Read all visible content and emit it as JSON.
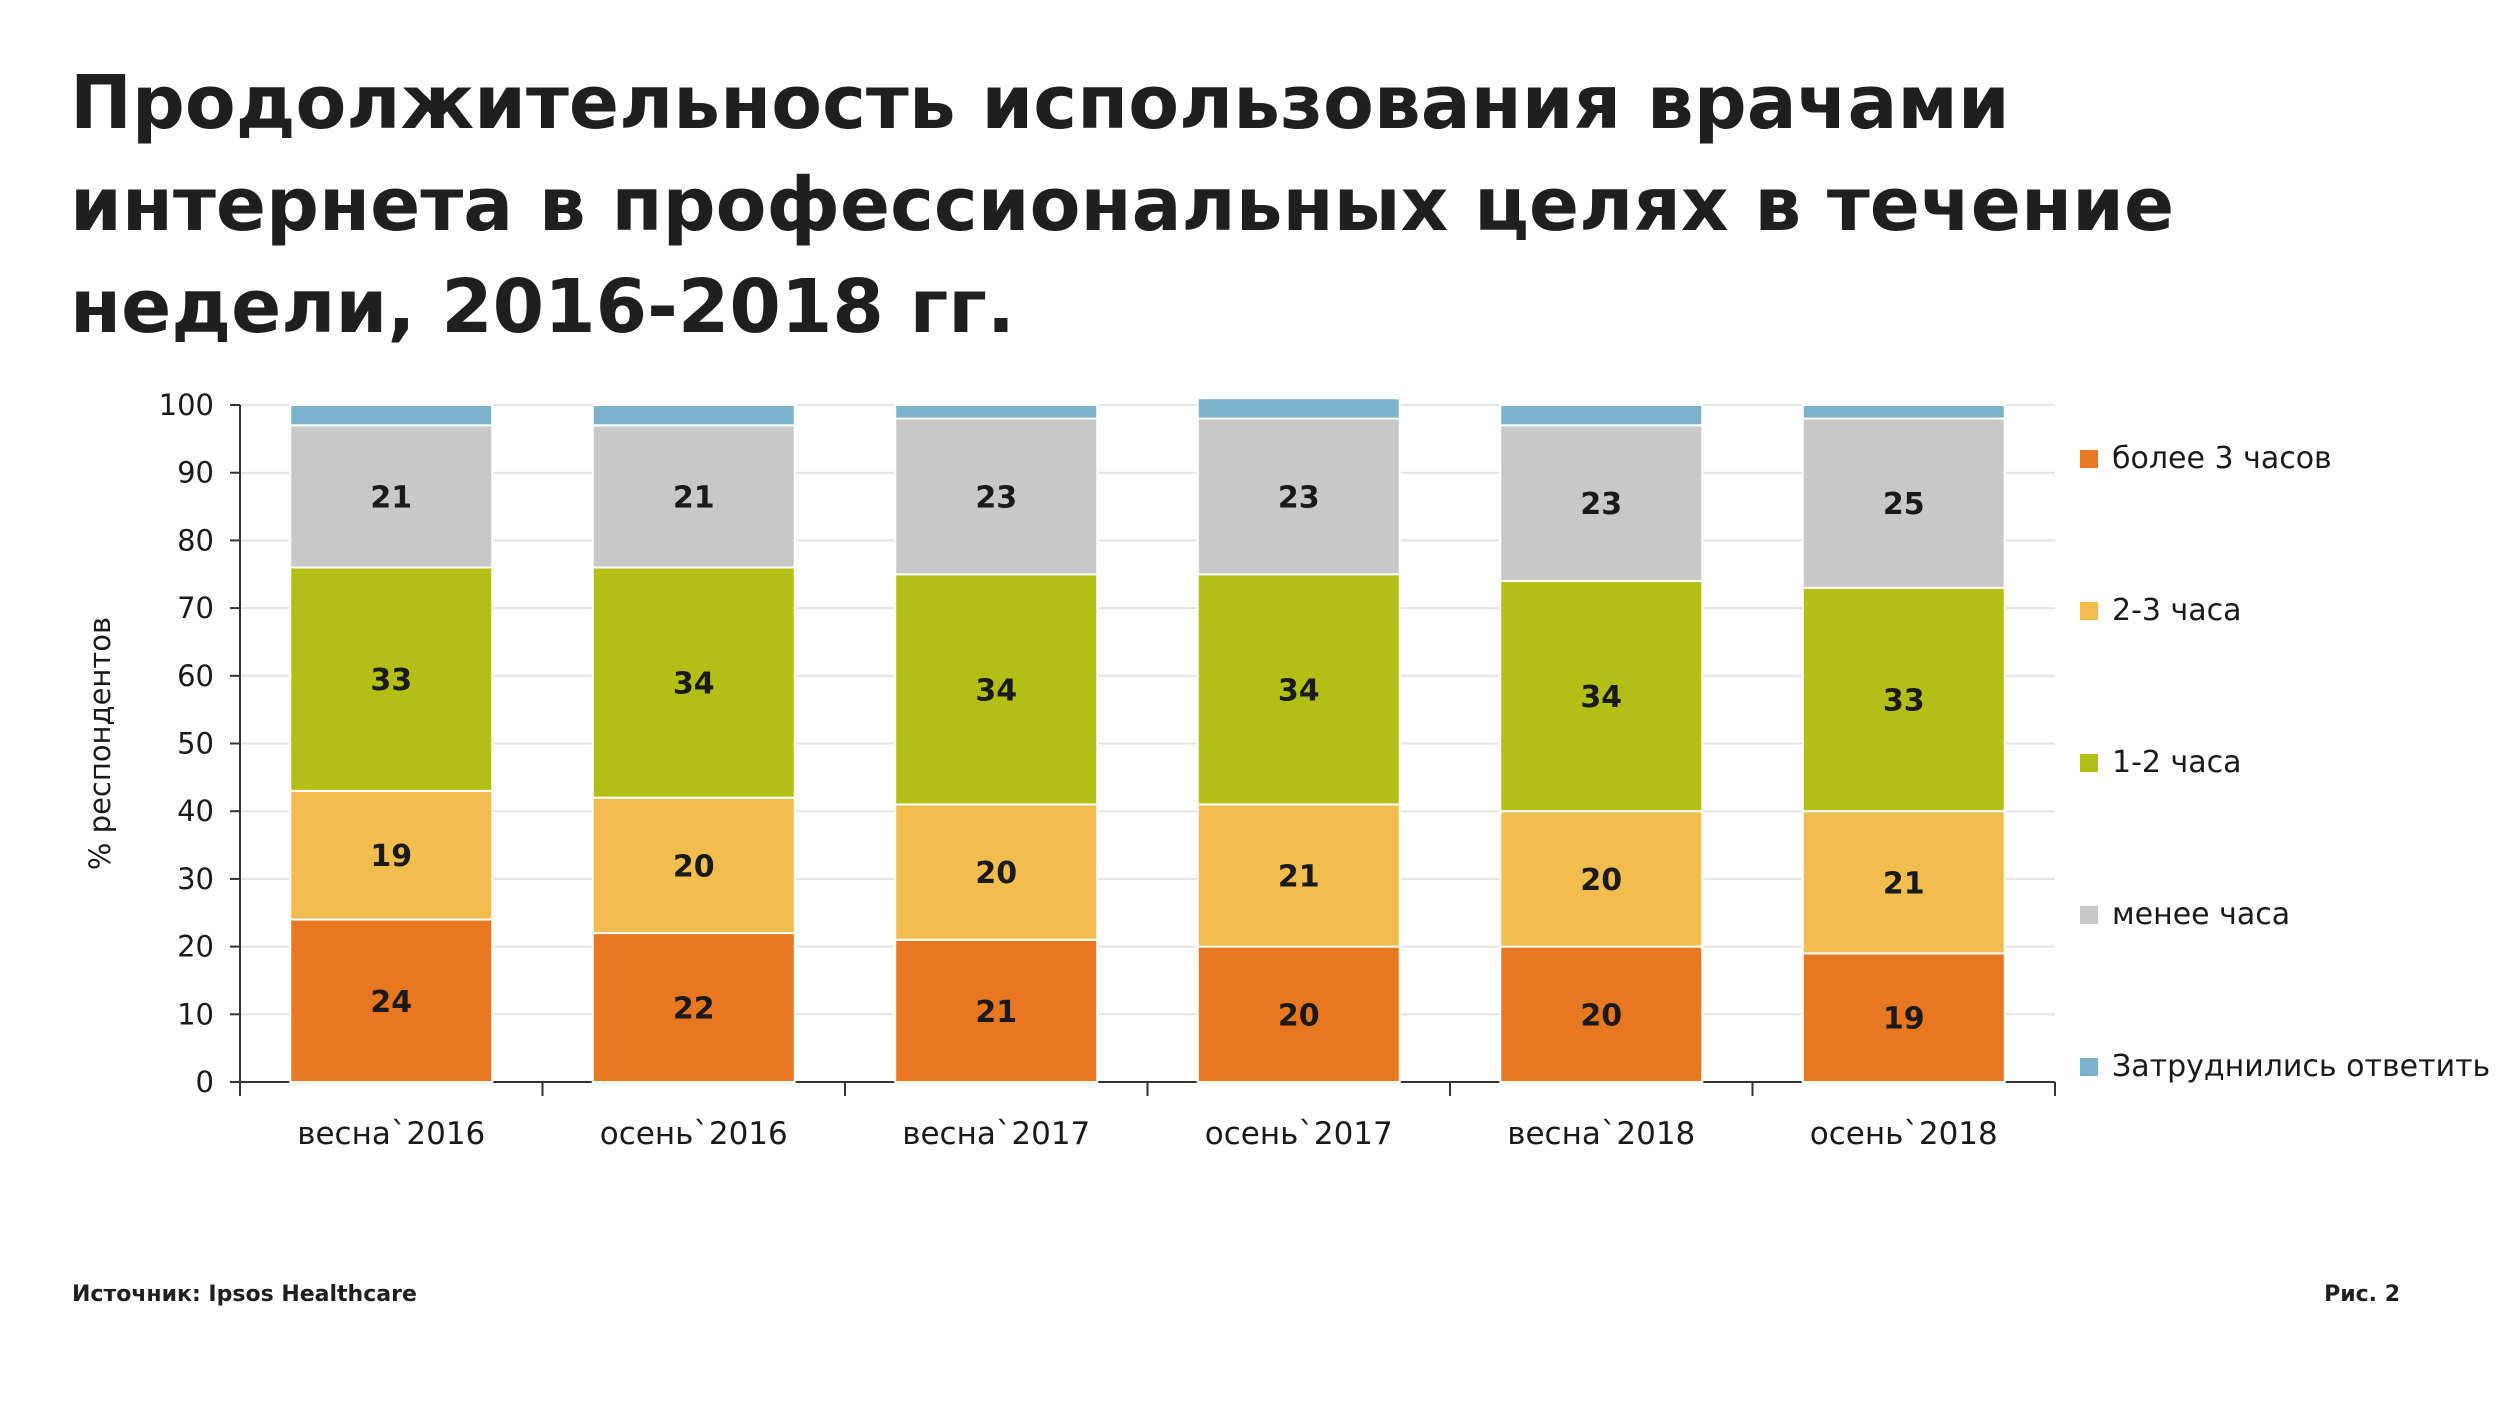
{
  "title": "Продолжительность использования врачами интернета в профессиональных целях в течение недели, 2016-2018 гг.",
  "footer": {
    "source": "Источник: Ipsos Healthcare",
    "figure": "Рис. 2"
  },
  "chart_data": {
    "type": "bar",
    "stacked": true,
    "ylabel": "% респондентов",
    "xlabel": "",
    "ylim": [
      0,
      100
    ],
    "yticks": [
      0,
      10,
      20,
      30,
      40,
      50,
      60,
      70,
      80,
      90,
      100
    ],
    "grid": true,
    "legend_position": "right",
    "categories": [
      "весна`2016",
      "осень`2016",
      "весна`2017",
      "осень`2017",
      "весна`2018",
      "осень`2018"
    ],
    "series": [
      {
        "name": "более 3 часов",
        "color": "#e87722",
        "values": [
          24,
          22,
          21,
          20,
          20,
          19
        ]
      },
      {
        "name": "2-3 часа",
        "color": "#f2bd4f",
        "values": [
          19,
          20,
          20,
          21,
          20,
          21
        ]
      },
      {
        "name": "1-2 часа",
        "color": "#b4bf16",
        "values": [
          33,
          34,
          34,
          34,
          34,
          33
        ]
      },
      {
        "name": "менее часа",
        "color": "#c8c8c8",
        "values": [
          21,
          21,
          23,
          23,
          23,
          25
        ]
      },
      {
        "name": "Затруднились ответить",
        "color": "#7bb3cc",
        "values": [
          3,
          3,
          2,
          3,
          3,
          2
        ]
      }
    ],
    "legend_order": [
      "более 3 часов",
      "2-3 часа",
      "1-2 часа",
      "менее часа",
      "Затруднились ответить"
    ],
    "label_series": [
      "более 3 часов",
      "2-3 часа",
      "1-2 часа",
      "менее часа"
    ]
  }
}
